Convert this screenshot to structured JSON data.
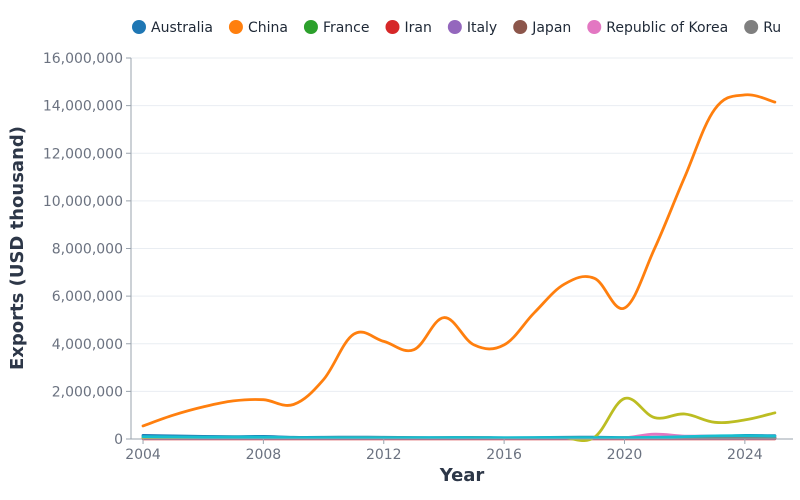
{
  "chart_data": {
    "type": "line",
    "xlabel": "Year",
    "ylabel": "Exports (USD thousand)",
    "xlim": [
      2003.6,
      2025.6
    ],
    "ylim": [
      0,
      16000000
    ],
    "x_ticks": [
      2004,
      2008,
      2012,
      2016,
      2020,
      2024
    ],
    "y_ticks": [
      0,
      2000000,
      4000000,
      6000000,
      8000000,
      10000000,
      12000000,
      14000000,
      16000000
    ],
    "x_tick_labels": [
      "2004",
      "2008",
      "2012",
      "2016",
      "2020",
      "2024"
    ],
    "y_tick_labels": [
      "0",
      "2,000,000",
      "4,000,000",
      "6,000,000",
      "8,000,000",
      "10,000,000",
      "12,000,000",
      "14,000,000",
      "16,000,000"
    ],
    "grid": true,
    "legend_position": "top",
    "x": [
      2004,
      2005,
      2006,
      2007,
      2008,
      2009,
      2010,
      2011,
      2012,
      2013,
      2014,
      2015,
      2016,
      2017,
      2018,
      2019,
      2020,
      2021,
      2022,
      2023,
      2024,
      2025
    ],
    "series": [
      {
        "name": "Australia",
        "color": "#1f77b4",
        "values": [
          150000,
          130000,
          110000,
          100000,
          110000,
          70000,
          70000,
          80000,
          70000,
          60000,
          60000,
          60000,
          50000,
          60000,
          70000,
          80000,
          60000,
          70000,
          90000,
          100000,
          150000,
          140000
        ]
      },
      {
        "name": "China",
        "color": "#ff7f0e",
        "values": [
          550000,
          1000000,
          1350000,
          1600000,
          1650000,
          1450000,
          2500000,
          4400000,
          4100000,
          3750000,
          5100000,
          3950000,
          3950000,
          5300000,
          6500000,
          6750000,
          5500000,
          8000000,
          11000000,
          13850000,
          14450000,
          14150000
        ]
      },
      {
        "name": "France",
        "color": "#2ca02c",
        "values": [
          20000,
          20000,
          20000,
          20000,
          20000,
          20000,
          20000,
          20000,
          20000,
          20000,
          20000,
          20000,
          20000,
          20000,
          20000,
          20000,
          20000,
          20000,
          20000,
          20000,
          20000,
          20000
        ]
      },
      {
        "name": "Iran",
        "color": "#d62728",
        "values": [
          10000,
          10000,
          10000,
          10000,
          10000,
          10000,
          10000,
          10000,
          10000,
          10000,
          10000,
          10000,
          10000,
          10000,
          10000,
          10000,
          10000,
          10000,
          10000,
          10000,
          10000,
          10000
        ]
      },
      {
        "name": "Italy",
        "color": "#9467bd",
        "values": [
          30000,
          30000,
          30000,
          30000,
          30000,
          30000,
          30000,
          30000,
          30000,
          30000,
          30000,
          30000,
          30000,
          30000,
          30000,
          30000,
          30000,
          30000,
          30000,
          30000,
          30000,
          30000
        ]
      },
      {
        "name": "Japan",
        "color": "#8c564b",
        "values": [
          60000,
          60000,
          60000,
          60000,
          60000,
          50000,
          50000,
          60000,
          60000,
          50000,
          50000,
          60000,
          40000,
          40000,
          50000,
          50000,
          50000,
          60000,
          50000,
          50000,
          50000,
          50000
        ]
      },
      {
        "name": "Republic of Korea",
        "color": "#e377c2",
        "values": [
          40000,
          40000,
          40000,
          40000,
          40000,
          40000,
          40000,
          50000,
          40000,
          40000,
          40000,
          40000,
          40000,
          40000,
          40000,
          40000,
          50000,
          200000,
          120000,
          130000,
          100000,
          80000
        ]
      },
      {
        "name": "Ru",
        "color": "#7f7f7f",
        "values": [
          80000,
          80000,
          70000,
          70000,
          60000,
          50000,
          50000,
          60000,
          60000,
          50000,
          50000,
          60000,
          40000,
          40000,
          50000,
          50000,
          50000,
          60000,
          60000,
          60000,
          60000,
          60000
        ]
      },
      {
        "color": "#bcbd22",
        "values": [
          60000,
          60000,
          50000,
          50000,
          50000,
          40000,
          40000,
          40000,
          40000,
          40000,
          40000,
          40000,
          40000,
          40000,
          40000,
          70000,
          1700000,
          900000,
          1050000,
          700000,
          800000,
          1100000
        ]
      },
      {
        "color": "#17becf",
        "values": [
          100000,
          90000,
          80000,
          80000,
          80000,
          60000,
          60000,
          60000,
          60000,
          60000,
          60000,
          60000,
          50000,
          60000,
          60000,
          60000,
          60000,
          70000,
          100000,
          130000,
          140000,
          120000
        ]
      }
    ]
  }
}
